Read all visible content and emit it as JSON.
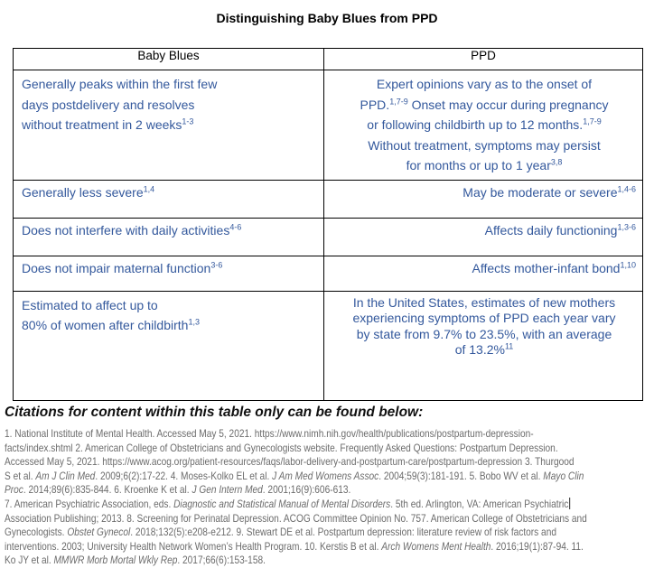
{
  "title": "Distinguishing Baby Blues from PPD",
  "colors": {
    "table_text": "#33589c",
    "citation_text": "#6b6b6b",
    "border": "#000000"
  },
  "table": {
    "headers": {
      "left": "Baby Blues",
      "right": "PPD"
    },
    "rows": {
      "r1": {
        "left_lines": [
          "Generally peaks within the first few",
          "days postdelivery and resolves",
          "without treatment in 2 weeks^{1-3}"
        ],
        "right_lines": [
          "Expert opinions vary as to the onset of",
          "PPD.^{1,7-9} Onset may occur during pregnancy",
          "or following childbirth up to 12 months.^{1,7-9}",
          "Without treatment, symptoms may persist",
          "for months or up to 1 year^{3,8}"
        ]
      },
      "r2": {
        "left": "Generally less severe^{1,4}",
        "right": "May be moderate or severe^{1,4-6}"
      },
      "r3": {
        "left": "Does not interfere with daily activities^{4-6}",
        "right": "Affects daily functioning^{1,3-6}"
      },
      "r4": {
        "left": "Does not impair maternal function^{3-6}",
        "right": "Affects mother-infant bond^{1,10}"
      },
      "r5": {
        "left_lines": [
          "Estimated to affect up to",
          "80% of women after childbirth^{1,3}"
        ],
        "right_lines": [
          "In the United States, estimates of new mothers",
          "experiencing symptoms of PPD each year vary",
          "by state from 9.7% to 23.5%, with an average",
          "of 13.2%^{11}"
        ]
      }
    }
  },
  "citations": {
    "heading": "Citations for content within this table only can be found below:",
    "lines": [
      "1. National Institute of Mental Health. Accessed May 5, 2021. https://www.nimh.nih.gov/health/publications/postpartum-depression-",
      "facts/index.shtml 2. American College of Obstetricians and Gynecologists website. Frequently Asked Questions: Postpartum Depression.",
      "Accessed May 5, 2021. https://www.acog.org/patient-resources/faqs/labor-delivery-and-postpartum-care/postpartum-depression 3. Thurgood",
      "S et al. *Am J Clin Med*. 2009;6(2):17-22. 4. Moses-Kolko EL et al. *J Am Med Womens Assoc*. 2004;59(3):181-191. 5. Bobo WV et al. *Mayo Clin*",
      "*Proc*. 2014;89(6):835-844. 6. Kroenke K et al. *J Gen Intern Med*. 2001;16(9):606-613.",
      "7. American Psychiatric Association, eds. *Diagnostic and Statistical Manual of Mental Disorders*. 5th ed. Arlington, VA: American Psychiatric{cursor}",
      "Association Publishing; 2013. 8. Screening for Perinatal Depression. ACOG Committee Opinion No. 757. American College of Obstetricians and",
      "Gynecologists. *Obstet Gynecol*. 2018;132(5):e208-e212. 9. Stewart DE et al. Postpartum depression: literature review of risk factors and",
      "interventions. 2003; University Health Network Women’s Health Program. 10. Kerstis B et al. *Arch Womens Ment Health*. 2016;19(1):87-94. 11.",
      "Ko JY et al. *MMWR Morb Mortal Wkly Rep*. 2017;66(6):153-158."
    ]
  }
}
